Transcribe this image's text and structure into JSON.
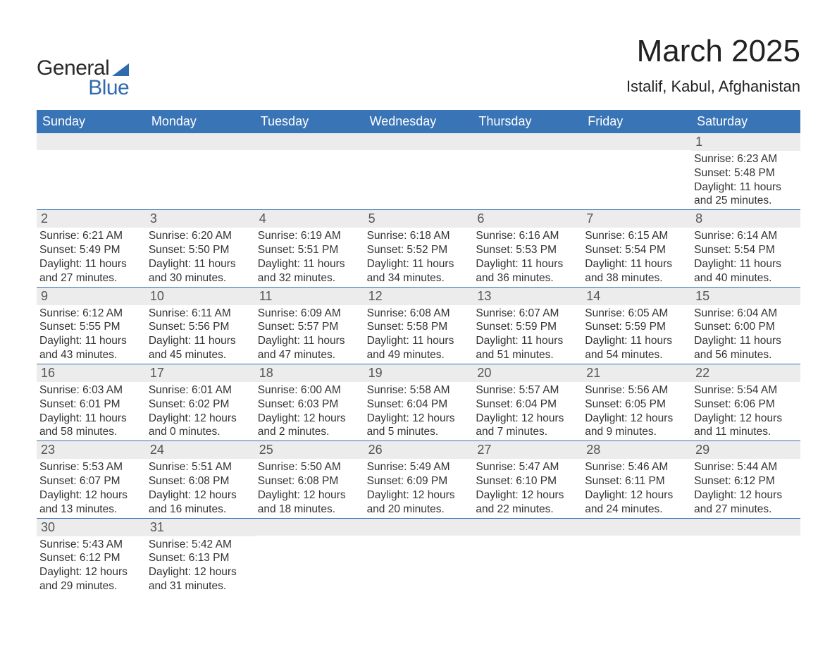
{
  "logo": {
    "text1": "General",
    "text2": "Blue",
    "triangle_color": "#2f6bad"
  },
  "header": {
    "title": "March 2025",
    "subtitle": "Istalif, Kabul, Afghanistan"
  },
  "colors": {
    "header_bg": "#3874b6",
    "header_fg": "#ffffff",
    "daynum_bg": "#ececec",
    "daynum_fg": "#555555",
    "text": "#333333",
    "row_border": "#3874b6",
    "logo_blue": "#2f6bad"
  },
  "fontsize": {
    "title": 44,
    "subtitle": 22,
    "weekday": 18,
    "daynum": 18,
    "info": 15.5,
    "logo": 30
  },
  "weekdays": [
    "Sunday",
    "Monday",
    "Tuesday",
    "Wednesday",
    "Thursday",
    "Friday",
    "Saturday"
  ],
  "weeks": [
    [
      {
        "day": "",
        "sunrise": "",
        "sunset": "",
        "daylight1": "",
        "daylight2": ""
      },
      {
        "day": "",
        "sunrise": "",
        "sunset": "",
        "daylight1": "",
        "daylight2": ""
      },
      {
        "day": "",
        "sunrise": "",
        "sunset": "",
        "daylight1": "",
        "daylight2": ""
      },
      {
        "day": "",
        "sunrise": "",
        "sunset": "",
        "daylight1": "",
        "daylight2": ""
      },
      {
        "day": "",
        "sunrise": "",
        "sunset": "",
        "daylight1": "",
        "daylight2": ""
      },
      {
        "day": "",
        "sunrise": "",
        "sunset": "",
        "daylight1": "",
        "daylight2": ""
      },
      {
        "day": "1",
        "sunrise": "Sunrise: 6:23 AM",
        "sunset": "Sunset: 5:48 PM",
        "daylight1": "Daylight: 11 hours",
        "daylight2": "and 25 minutes."
      }
    ],
    [
      {
        "day": "2",
        "sunrise": "Sunrise: 6:21 AM",
        "sunset": "Sunset: 5:49 PM",
        "daylight1": "Daylight: 11 hours",
        "daylight2": "and 27 minutes."
      },
      {
        "day": "3",
        "sunrise": "Sunrise: 6:20 AM",
        "sunset": "Sunset: 5:50 PM",
        "daylight1": "Daylight: 11 hours",
        "daylight2": "and 30 minutes."
      },
      {
        "day": "4",
        "sunrise": "Sunrise: 6:19 AM",
        "sunset": "Sunset: 5:51 PM",
        "daylight1": "Daylight: 11 hours",
        "daylight2": "and 32 minutes."
      },
      {
        "day": "5",
        "sunrise": "Sunrise: 6:18 AM",
        "sunset": "Sunset: 5:52 PM",
        "daylight1": "Daylight: 11 hours",
        "daylight2": "and 34 minutes."
      },
      {
        "day": "6",
        "sunrise": "Sunrise: 6:16 AM",
        "sunset": "Sunset: 5:53 PM",
        "daylight1": "Daylight: 11 hours",
        "daylight2": "and 36 minutes."
      },
      {
        "day": "7",
        "sunrise": "Sunrise: 6:15 AM",
        "sunset": "Sunset: 5:54 PM",
        "daylight1": "Daylight: 11 hours",
        "daylight2": "and 38 minutes."
      },
      {
        "day": "8",
        "sunrise": "Sunrise: 6:14 AM",
        "sunset": "Sunset: 5:54 PM",
        "daylight1": "Daylight: 11 hours",
        "daylight2": "and 40 minutes."
      }
    ],
    [
      {
        "day": "9",
        "sunrise": "Sunrise: 6:12 AM",
        "sunset": "Sunset: 5:55 PM",
        "daylight1": "Daylight: 11 hours",
        "daylight2": "and 43 minutes."
      },
      {
        "day": "10",
        "sunrise": "Sunrise: 6:11 AM",
        "sunset": "Sunset: 5:56 PM",
        "daylight1": "Daylight: 11 hours",
        "daylight2": "and 45 minutes."
      },
      {
        "day": "11",
        "sunrise": "Sunrise: 6:09 AM",
        "sunset": "Sunset: 5:57 PM",
        "daylight1": "Daylight: 11 hours",
        "daylight2": "and 47 minutes."
      },
      {
        "day": "12",
        "sunrise": "Sunrise: 6:08 AM",
        "sunset": "Sunset: 5:58 PM",
        "daylight1": "Daylight: 11 hours",
        "daylight2": "and 49 minutes."
      },
      {
        "day": "13",
        "sunrise": "Sunrise: 6:07 AM",
        "sunset": "Sunset: 5:59 PM",
        "daylight1": "Daylight: 11 hours",
        "daylight2": "and 51 minutes."
      },
      {
        "day": "14",
        "sunrise": "Sunrise: 6:05 AM",
        "sunset": "Sunset: 5:59 PM",
        "daylight1": "Daylight: 11 hours",
        "daylight2": "and 54 minutes."
      },
      {
        "day": "15",
        "sunrise": "Sunrise: 6:04 AM",
        "sunset": "Sunset: 6:00 PM",
        "daylight1": "Daylight: 11 hours",
        "daylight2": "and 56 minutes."
      }
    ],
    [
      {
        "day": "16",
        "sunrise": "Sunrise: 6:03 AM",
        "sunset": "Sunset: 6:01 PM",
        "daylight1": "Daylight: 11 hours",
        "daylight2": "and 58 minutes."
      },
      {
        "day": "17",
        "sunrise": "Sunrise: 6:01 AM",
        "sunset": "Sunset: 6:02 PM",
        "daylight1": "Daylight: 12 hours",
        "daylight2": "and 0 minutes."
      },
      {
        "day": "18",
        "sunrise": "Sunrise: 6:00 AM",
        "sunset": "Sunset: 6:03 PM",
        "daylight1": "Daylight: 12 hours",
        "daylight2": "and 2 minutes."
      },
      {
        "day": "19",
        "sunrise": "Sunrise: 5:58 AM",
        "sunset": "Sunset: 6:04 PM",
        "daylight1": "Daylight: 12 hours",
        "daylight2": "and 5 minutes."
      },
      {
        "day": "20",
        "sunrise": "Sunrise: 5:57 AM",
        "sunset": "Sunset: 6:04 PM",
        "daylight1": "Daylight: 12 hours",
        "daylight2": "and 7 minutes."
      },
      {
        "day": "21",
        "sunrise": "Sunrise: 5:56 AM",
        "sunset": "Sunset: 6:05 PM",
        "daylight1": "Daylight: 12 hours",
        "daylight2": "and 9 minutes."
      },
      {
        "day": "22",
        "sunrise": "Sunrise: 5:54 AM",
        "sunset": "Sunset: 6:06 PM",
        "daylight1": "Daylight: 12 hours",
        "daylight2": "and 11 minutes."
      }
    ],
    [
      {
        "day": "23",
        "sunrise": "Sunrise: 5:53 AM",
        "sunset": "Sunset: 6:07 PM",
        "daylight1": "Daylight: 12 hours",
        "daylight2": "and 13 minutes."
      },
      {
        "day": "24",
        "sunrise": "Sunrise: 5:51 AM",
        "sunset": "Sunset: 6:08 PM",
        "daylight1": "Daylight: 12 hours",
        "daylight2": "and 16 minutes."
      },
      {
        "day": "25",
        "sunrise": "Sunrise: 5:50 AM",
        "sunset": "Sunset: 6:08 PM",
        "daylight1": "Daylight: 12 hours",
        "daylight2": "and 18 minutes."
      },
      {
        "day": "26",
        "sunrise": "Sunrise: 5:49 AM",
        "sunset": "Sunset: 6:09 PM",
        "daylight1": "Daylight: 12 hours",
        "daylight2": "and 20 minutes."
      },
      {
        "day": "27",
        "sunrise": "Sunrise: 5:47 AM",
        "sunset": "Sunset: 6:10 PM",
        "daylight1": "Daylight: 12 hours",
        "daylight2": "and 22 minutes."
      },
      {
        "day": "28",
        "sunrise": "Sunrise: 5:46 AM",
        "sunset": "Sunset: 6:11 PM",
        "daylight1": "Daylight: 12 hours",
        "daylight2": "and 24 minutes."
      },
      {
        "day": "29",
        "sunrise": "Sunrise: 5:44 AM",
        "sunset": "Sunset: 6:12 PM",
        "daylight1": "Daylight: 12 hours",
        "daylight2": "and 27 minutes."
      }
    ],
    [
      {
        "day": "30",
        "sunrise": "Sunrise: 5:43 AM",
        "sunset": "Sunset: 6:12 PM",
        "daylight1": "Daylight: 12 hours",
        "daylight2": "and 29 minutes."
      },
      {
        "day": "31",
        "sunrise": "Sunrise: 5:42 AM",
        "sunset": "Sunset: 6:13 PM",
        "daylight1": "Daylight: 12 hours",
        "daylight2": "and 31 minutes."
      },
      {
        "day": "",
        "sunrise": "",
        "sunset": "",
        "daylight1": "",
        "daylight2": ""
      },
      {
        "day": "",
        "sunrise": "",
        "sunset": "",
        "daylight1": "",
        "daylight2": ""
      },
      {
        "day": "",
        "sunrise": "",
        "sunset": "",
        "daylight1": "",
        "daylight2": ""
      },
      {
        "day": "",
        "sunrise": "",
        "sunset": "",
        "daylight1": "",
        "daylight2": ""
      },
      {
        "day": "",
        "sunrise": "",
        "sunset": "",
        "daylight1": "",
        "daylight2": ""
      }
    ]
  ]
}
